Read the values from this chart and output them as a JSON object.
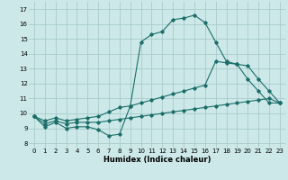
{
  "xlabel": "Humidex (Indice chaleur)",
  "x_ticks": [
    0,
    1,
    2,
    3,
    4,
    5,
    6,
    7,
    8,
    9,
    10,
    11,
    12,
    13,
    14,
    15,
    16,
    17,
    18,
    19,
    20,
    21,
    22,
    23
  ],
  "y_ticks": [
    8,
    9,
    10,
    11,
    12,
    13,
    14,
    15,
    16,
    17
  ],
  "xlim": [
    -0.5,
    23.5
  ],
  "ylim": [
    7.7,
    17.5
  ],
  "bg_color": "#cce8e8",
  "grid_color": "#aacccc",
  "line_color": "#1a6e6a",
  "line1_x": [
    0,
    1,
    2,
    3,
    4,
    5,
    6,
    7,
    8,
    9,
    10,
    11,
    12,
    13,
    14,
    15,
    16,
    17,
    18,
    19,
    20,
    21,
    22,
    23
  ],
  "line1_y": [
    9.8,
    9.1,
    9.4,
    9.0,
    9.1,
    9.1,
    8.9,
    8.5,
    8.6,
    10.5,
    14.8,
    15.3,
    15.5,
    16.3,
    16.4,
    16.6,
    16.1,
    14.8,
    13.5,
    13.3,
    12.3,
    11.5,
    10.7,
    10.7
  ],
  "line2_x": [
    0,
    1,
    2,
    3,
    4,
    5,
    6,
    7,
    8,
    9,
    10,
    11,
    12,
    13,
    14,
    15,
    16,
    17,
    18,
    19,
    20,
    21,
    22,
    23
  ],
  "line2_y": [
    9.8,
    9.5,
    9.7,
    9.5,
    9.6,
    9.7,
    9.8,
    10.1,
    10.4,
    10.5,
    10.7,
    10.9,
    11.1,
    11.3,
    11.5,
    11.7,
    11.9,
    13.5,
    13.4,
    13.3,
    13.2,
    12.3,
    11.5,
    10.7
  ],
  "line3_x": [
    0,
    1,
    2,
    3,
    4,
    5,
    6,
    7,
    8,
    9,
    10,
    11,
    12,
    13,
    14,
    15,
    16,
    17,
    18,
    19,
    20,
    21,
    22,
    23
  ],
  "line3_y": [
    9.8,
    9.3,
    9.5,
    9.3,
    9.4,
    9.4,
    9.4,
    9.5,
    9.6,
    9.7,
    9.8,
    9.9,
    10.0,
    10.1,
    10.2,
    10.3,
    10.4,
    10.5,
    10.6,
    10.7,
    10.8,
    10.9,
    11.0,
    10.7
  ]
}
